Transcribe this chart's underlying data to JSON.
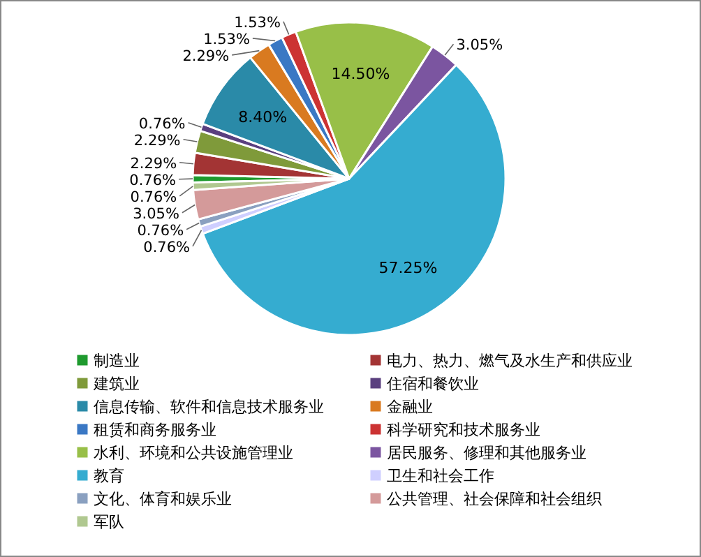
{
  "chart_data": {
    "type": "pie",
    "categories": [
      "制造业",
      "电力、热力、燃气及水生产和供应业",
      "建筑业",
      "住宿和餐饮业",
      "信息传输、软件和信息技术服务业",
      "金融业",
      "租赁和商务服务业",
      "科学研究和技术服务业",
      "水利、环境和公共设施管理业",
      "居民服务、修理和其他服务业",
      "教育",
      "卫生和社会工作",
      "文化、体育和娱乐业",
      "公共管理、社会保障和社会组织",
      "军队"
    ],
    "values": [
      0.76,
      2.29,
      2.29,
      0.76,
      8.4,
      2.29,
      1.53,
      1.53,
      14.5,
      3.05,
      57.25,
      0.76,
      0.76,
      3.05,
      0.76
    ],
    "value_labels": [
      "0.76%",
      "2.29%",
      "2.29%",
      "0.76%",
      "8.40%",
      "2.29%",
      "1.53%",
      "1.53%",
      "14.50%",
      "3.05%",
      "57.25%",
      "0.76%",
      "0.76%",
      "3.05%",
      "0.76%"
    ],
    "colors": [
      "#1e9a2e",
      "#a33434",
      "#7f9a3a",
      "#5a3f7f",
      "#2a8aa8",
      "#d97a20",
      "#3a78c4",
      "#cc3333",
      "#98bf48",
      "#7b55a0",
      "#35acd0",
      "#cfcfff",
      "#8aa0c0",
      "#d49a9a",
      "#b0c890"
    ],
    "legend": "bottom"
  }
}
